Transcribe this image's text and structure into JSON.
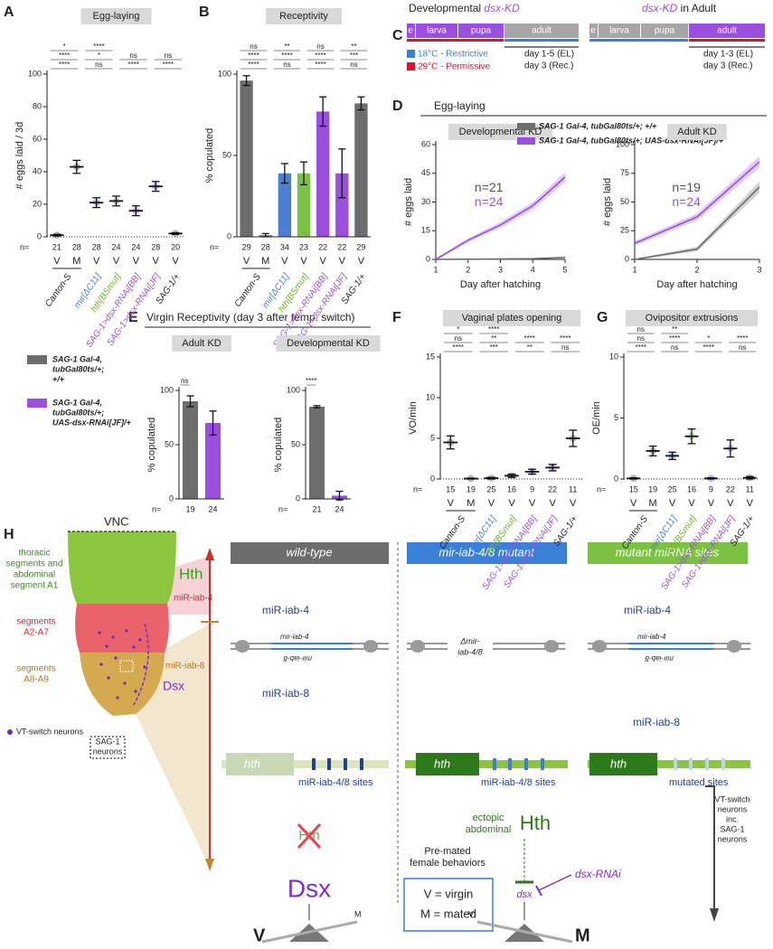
{
  "panel_labels": [
    "A",
    "B",
    "C",
    "D",
    "E",
    "F",
    "G",
    "H"
  ],
  "chart_data": [
    {
      "type": "errorbar",
      "title": "Egg-laying",
      "ylabel": "# eggs laid / 3d",
      "n_label": "n=",
      "genotypes": [
        "Canton-S",
        "mir[ΔC11]",
        "hth[BSmut]",
        "SAG-1>dsx-RNAi[BB]",
        "SAG-1>dsx-RNAi[JF]",
        "SAG-1/+"
      ],
      "genotype_colors": [
        "#222222",
        "#4a7fd4",
        "#6fb52c",
        "#9b4fe0",
        "#9b4fe0",
        "#222222"
      ],
      "status": [
        "V",
        "M",
        "V",
        "V",
        "V",
        "V",
        "V"
      ],
      "n": [
        21,
        28,
        28,
        24,
        24,
        28,
        20
      ],
      "values": [
        1,
        43,
        21,
        22,
        16,
        31,
        2
      ],
      "errors": [
        0.5,
        4,
        3,
        3,
        3,
        3,
        0.5
      ],
      "colors": [
        "#8a8a8a",
        "#8a8a8a",
        "#6f9be0",
        "#8fcf4f",
        "#b07be8",
        "#b07be8",
        "#8a8a8a"
      ],
      "ylim": [
        0,
        100
      ],
      "yticks": [
        0,
        20,
        40,
        60,
        80,
        100
      ],
      "significance": [
        "****",
        "ns",
        "****",
        "****",
        "****",
        "*",
        "ns",
        "ns",
        "*",
        "****"
      ]
    },
    {
      "type": "bar",
      "title": "Receptivity",
      "ylabel": "% copulated",
      "n_label": "n=",
      "genotypes": [
        "Canton-S",
        "mir[ΔC11]",
        "hth[BSmut]",
        "SAG-1>dsx-RNAi[BB]",
        "SAG-1>dsx-RNAi[JF]",
        "SAG-1/+"
      ],
      "genotype_colors": [
        "#222222",
        "#4a7fd4",
        "#6fb52c",
        "#9b4fe0",
        "#9b4fe0",
        "#222222"
      ],
      "status": [
        "V",
        "M",
        "V",
        "V",
        "V",
        "V",
        "V"
      ],
      "n": [
        29,
        28,
        34,
        23,
        22,
        22,
        29
      ],
      "values": [
        96,
        1,
        39,
        39,
        77,
        39,
        82
      ],
      "errors": [
        3,
        1,
        6,
        7,
        9,
        15,
        4
      ],
      "colors": [
        "#6d6d6d",
        "#6d6d6d",
        "#4a7fd4",
        "#7cc242",
        "#9b4fe0",
        "#9b4fe0",
        "#6d6d6d"
      ],
      "ylim": [
        0,
        100
      ],
      "yticks": [
        0,
        50,
        100
      ],
      "significance": [
        "****",
        "ns",
        "****",
        "ns",
        "****",
        "****",
        "****",
        "***",
        "ns",
        "**",
        "ns",
        "**"
      ]
    },
    {
      "type": "line",
      "title": "Developmental KD",
      "xlabel": "Day after hatching",
      "ylabel": "# eggs laid",
      "x": [
        1,
        2,
        3,
        4,
        5
      ],
      "xlim": [
        1,
        5
      ],
      "xticks": [
        1,
        2,
        3,
        4,
        5
      ],
      "ylim": [
        0,
        60
      ],
      "yticks": [
        0,
        15,
        30,
        45,
        60
      ],
      "series": [
        {
          "name": "SAG-1 Gal-4, tubGal80ts/+; +/+",
          "color": "#6d6d6d",
          "values": [
            0,
            0.1,
            0.2,
            0.4,
            1
          ],
          "errors": [
            0.1,
            0.1,
            0.2,
            0.3,
            0.5
          ]
        },
        {
          "name": "SAG-1 Gal-4, tubGal80ts/+; UAS-dsx-RNAi[JF]/+",
          "color": "#9b4fe0",
          "values": [
            0,
            10,
            18,
            28,
            43
          ],
          "errors": [
            0.5,
            1,
            1.5,
            2,
            2.5
          ]
        }
      ],
      "annotations": [
        {
          "text": "n=21",
          "color": "#555555"
        },
        {
          "text": "n=24",
          "color": "#9b4fe0"
        }
      ]
    },
    {
      "type": "line",
      "title": "Adult KD",
      "xlabel": "Day after hatching",
      "ylabel": "# eggs laid",
      "x": [
        1,
        2,
        3
      ],
      "xlim": [
        1,
        3
      ],
      "xticks": [
        1,
        2,
        3
      ],
      "ylim": [
        0,
        100
      ],
      "yticks": [
        0,
        25,
        50,
        75,
        100
      ],
      "series": [
        {
          "color": "#6d6d6d",
          "values": [
            0,
            9,
            63
          ],
          "errors": [
            0.5,
            2,
            5
          ]
        },
        {
          "color": "#9b4fe0",
          "values": [
            14,
            37,
            85
          ],
          "errors": [
            2,
            3,
            5
          ]
        }
      ],
      "annotations": [
        {
          "text": "n=19",
          "color": "#555555"
        },
        {
          "text": "n=24",
          "color": "#9b4fe0"
        }
      ]
    },
    {
      "type": "bar",
      "title": "Adult KD",
      "ylabel": "% copulated",
      "n_label": "n=",
      "n": [
        19,
        24
      ],
      "values": [
        90,
        70
      ],
      "errors": [
        5,
        11
      ],
      "colors": [
        "#6d6d6d",
        "#9b4fe0"
      ],
      "ylim": [
        0,
        100
      ],
      "yticks": [
        0,
        50,
        100
      ],
      "significance": [
        "ns"
      ]
    },
    {
      "type": "bar",
      "title": "Developmental KD",
      "ylabel": "% copulated",
      "n_label": "n=",
      "n": [
        21,
        24
      ],
      "values": [
        85,
        3
      ],
      "errors": [
        1,
        4
      ],
      "colors": [
        "#6d6d6d",
        "#9b4fe0"
      ],
      "ylim": [
        0,
        100
      ],
      "yticks": [
        0,
        50,
        100
      ],
      "significance": [
        "****"
      ]
    },
    {
      "type": "errorbar",
      "title": "Vaginal plates opening",
      "ylabel": "VO/min",
      "n_label": "n=",
      "genotypes": [
        "Canton-S",
        "mir[ΔC11]",
        "hth[BSmut]",
        "SAG-1>dsx-RNAi[BB]",
        "SAG-1>dsx-RNAi[JF]",
        "SAG-1/+"
      ],
      "genotype_colors": [
        "#222222",
        "#4a7fd4",
        "#6fb52c",
        "#9b4fe0",
        "#9b4fe0",
        "#222222"
      ],
      "status": [
        "V",
        "M",
        "V",
        "V",
        "V",
        "V",
        "V"
      ],
      "n": [
        15,
        19,
        25,
        16,
        9,
        22,
        11
      ],
      "values": [
        4.5,
        0.05,
        0.1,
        0.4,
        0.9,
        1.4,
        5
      ],
      "errors": [
        0.8,
        0.05,
        0.1,
        0.2,
        0.3,
        0.4,
        1
      ],
      "colors": [
        "#8a8a8a",
        "#8a8a8a",
        "#6f9be0",
        "#8fcf4f",
        "#b07be8",
        "#b07be8",
        "#8a8a8a"
      ],
      "ylim": [
        0,
        15
      ],
      "yticks": [
        0,
        5,
        10,
        15
      ],
      "significance": [
        "****",
        "***",
        "**",
        "ns",
        "ns",
        "**",
        "****",
        "****",
        "*",
        "****"
      ]
    },
    {
      "type": "errorbar",
      "title": "Ovipositor extrusions",
      "ylabel": "OE/min",
      "n_label": "n=",
      "genotypes": [
        "Canton-S",
        "mir[ΔC11]",
        "hth[BSmut]",
        "SAG-1>dsx-RNAi[BB]",
        "SAG-1>dsx-RNAi[JF]",
        "SAG-1/+"
      ],
      "genotype_colors": [
        "#222222",
        "#4a7fd4",
        "#6fb52c",
        "#9b4fe0",
        "#9b4fe0",
        "#222222"
      ],
      "status": [
        "V",
        "M",
        "V",
        "V",
        "V",
        "V",
        "V"
      ],
      "n": [
        15,
        19,
        25,
        16,
        9,
        22,
        11
      ],
      "values": [
        0.05,
        2.3,
        1.9,
        3.5,
        0.05,
        2.5,
        0.1
      ],
      "errors": [
        0.05,
        0.4,
        0.3,
        0.6,
        0.05,
        0.7,
        0.1
      ],
      "colors": [
        "#8a8a8a",
        "#8a8a8a",
        "#6f9be0",
        "#8fcf4f",
        "#b07be8",
        "#b07be8",
        "#8a8a8a"
      ],
      "ylim": [
        0,
        10
      ],
      "yticks": [
        0,
        5,
        10
      ],
      "significance": [
        "****",
        "ns",
        "****",
        "ns",
        "ns",
        "****",
        "*",
        "****",
        "ns",
        "**"
      ]
    }
  ],
  "d_header": "Egg-laying",
  "e_header": "Virgin Receptivity (day 3 after temp. switch)",
  "e_legend": [
    [
      "SAG-1 Gal-4,",
      "tubGal80ts/+;",
      "+/+"
    ],
    [
      "SAG-1 Gal-4,",
      "tubGal80ts/+;",
      "UAS-dsx-RNAi[JF]/+"
    ]
  ],
  "c": {
    "left_title": [
      "Developmental ",
      "dsx-KD"
    ],
    "right_title": [
      "dsx-KD",
      " in Adult"
    ],
    "stages": [
      "e",
      "larva",
      "pupa",
      "adult"
    ],
    "restrictive": "18°C - Restrictive",
    "permissive": "29°C - Permissive",
    "left_days": [
      "day 1-5 (EL)",
      "day 3 (Rec.)"
    ],
    "right_days": [
      "day 1-3 (EL)",
      "day 3 (Rec.)"
    ]
  },
  "h": {
    "vnc": "VNC",
    "thoracic": [
      "thoracic",
      "segments and",
      "abdominal",
      "segment A1"
    ],
    "a2a7": [
      "segments",
      "A2-A7"
    ],
    "a8a9": [
      "segments",
      "A8-A9"
    ],
    "hth_region": "Hth",
    "mir4_region": "miR-iab-4",
    "mir8_region": "miR-iab-8",
    "dsx_region": "Dsx",
    "vt_switch": "VT-switch neurons",
    "sag1": [
      "SAG-1",
      "neurons"
    ],
    "columns": [
      {
        "title": "wild-type",
        "mirna4": "miR-iab-4",
        "gene4": "mir-iab-4",
        "gene8": "mir-iab-8",
        "mirna8": "miR-iab-8",
        "hth": "hth",
        "sites": "miR-iab-4/8 sites"
      },
      {
        "title": "mir-iab-4/8 mutant",
        "deletion": [
          "Δmir-",
          "iab-4/8"
        ],
        "hth": "hth",
        "sites": "miR-iab-4/8 sites"
      },
      {
        "title": "mutant miRNA sites",
        "mirna4": "miR-iab-4",
        "gene4": "mir-iab-4",
        "gene8": "mir-iab-8",
        "mirna8": "miR-iab-8",
        "hth": "hth",
        "sites": "mutated sites"
      }
    ],
    "wt_hth": "Hth",
    "wt_dsx": "Dsx",
    "ectopic": [
      "ectopic",
      "abdominal"
    ],
    "ectopic_hth": "Hth",
    "dsx": "dsx",
    "dsx_rnai": "dsx-RNAi",
    "vt_pathway": [
      "VT-switch",
      "neurons",
      "inc.",
      "SAG-1",
      "neurons"
    ],
    "behaviors": [
      "Pre-mated",
      "female behaviors"
    ],
    "key_v": "V = virgin",
    "key_m": "M = mated",
    "seesaw": [
      "V",
      "M"
    ]
  }
}
